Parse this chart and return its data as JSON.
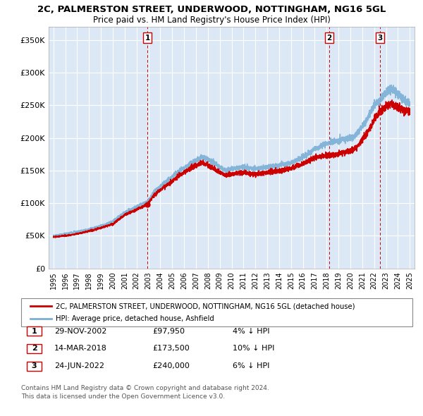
{
  "title": "2C, PALMERSTON STREET, UNDERWOOD, NOTTINGHAM, NG16 5GL",
  "subtitle": "Price paid vs. HM Land Registry's House Price Index (HPI)",
  "ylim": [
    0,
    370000
  ],
  "yticks": [
    0,
    50000,
    100000,
    150000,
    200000,
    250000,
    300000,
    350000
  ],
  "ytick_labels": [
    "£0",
    "£50K",
    "£100K",
    "£150K",
    "£200K",
    "£250K",
    "£300K",
    "£350K"
  ],
  "sale_dates_num": [
    2002.92,
    2018.21,
    2022.49
  ],
  "sale_prices": [
    97950,
    173500,
    240000
  ],
  "sale_labels": [
    "1",
    "2",
    "3"
  ],
  "vline_color": "#cc0000",
  "sale_color": "#cc0000",
  "hpi_color": "#7bafd4",
  "legend_entries": [
    "2C, PALMERSTON STREET, UNDERWOOD, NOTTINGHAM, NG16 5GL (detached house)",
    "HPI: Average price, detached house, Ashfield"
  ],
  "table_data": [
    [
      "1",
      "29-NOV-2002",
      "£97,950",
      "4% ↓ HPI"
    ],
    [
      "2",
      "14-MAR-2018",
      "£173,500",
      "10% ↓ HPI"
    ],
    [
      "3",
      "24-JUN-2022",
      "£240,000",
      "6% ↓ HPI"
    ]
  ],
  "footer": "Contains HM Land Registry data © Crown copyright and database right 2024.\nThis data is licensed under the Open Government Licence v3.0.",
  "bg_color": "#ffffff",
  "plot_bg_color": "#dce8f5",
  "grid_color": "#ffffff"
}
